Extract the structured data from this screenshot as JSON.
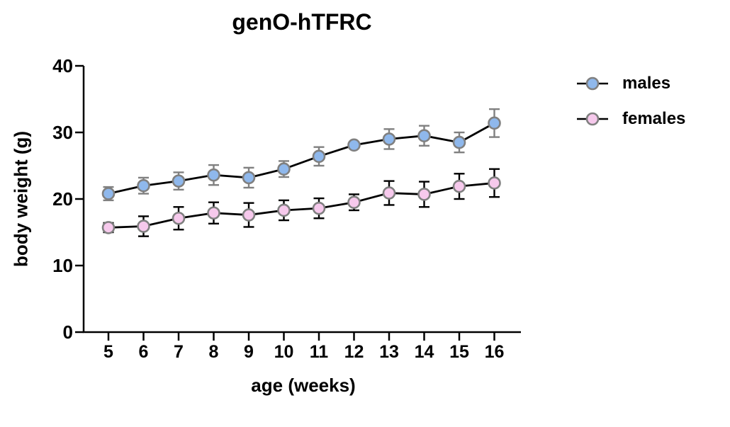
{
  "title": "genO-hTFRC",
  "chart_data": {
    "type": "line",
    "title": "genO-hTFRC",
    "xlabel": "age (weeks)",
    "ylabel": "body weight (g)",
    "x": [
      5,
      6,
      7,
      8,
      9,
      10,
      11,
      12,
      13,
      14,
      15,
      16
    ],
    "ylim": [
      0,
      40
    ],
    "yticks": [
      0,
      10,
      20,
      30,
      40
    ],
    "grid": false,
    "error_bars": true,
    "legend_position": "right-outside",
    "colors": {
      "axis": "#000000",
      "male_marker_fill": "#8FB8EC",
      "female_marker_fill": "#F6C9EC",
      "marker_stroke": "#808080",
      "male_error": "#808080",
      "female_error": "#000000",
      "line": "#000000"
    },
    "series": [
      {
        "name": "males",
        "marker": "circle",
        "marker_fill": "#8FB8EC",
        "marker_stroke": "#808080",
        "line_color": "#000000",
        "error_color": "#808080",
        "values": [
          20.8,
          22.0,
          22.7,
          23.6,
          23.2,
          24.5,
          26.4,
          28.1,
          29.0,
          29.5,
          28.5,
          31.4
        ],
        "errors": [
          1.0,
          1.2,
          1.3,
          1.5,
          1.5,
          1.2,
          1.4,
          0.4,
          1.5,
          1.5,
          1.5,
          2.1
        ]
      },
      {
        "name": "females",
        "marker": "circle",
        "marker_fill": "#F6C9EC",
        "marker_stroke": "#808080",
        "line_color": "#000000",
        "error_color": "#000000",
        "values": [
          15.7,
          15.9,
          17.1,
          17.9,
          17.6,
          18.3,
          18.6,
          19.5,
          20.9,
          20.7,
          21.9,
          22.4
        ],
        "errors": [
          0.7,
          1.5,
          1.7,
          1.6,
          1.8,
          1.5,
          1.5,
          1.2,
          1.8,
          1.9,
          1.9,
          2.1
        ]
      }
    ]
  }
}
